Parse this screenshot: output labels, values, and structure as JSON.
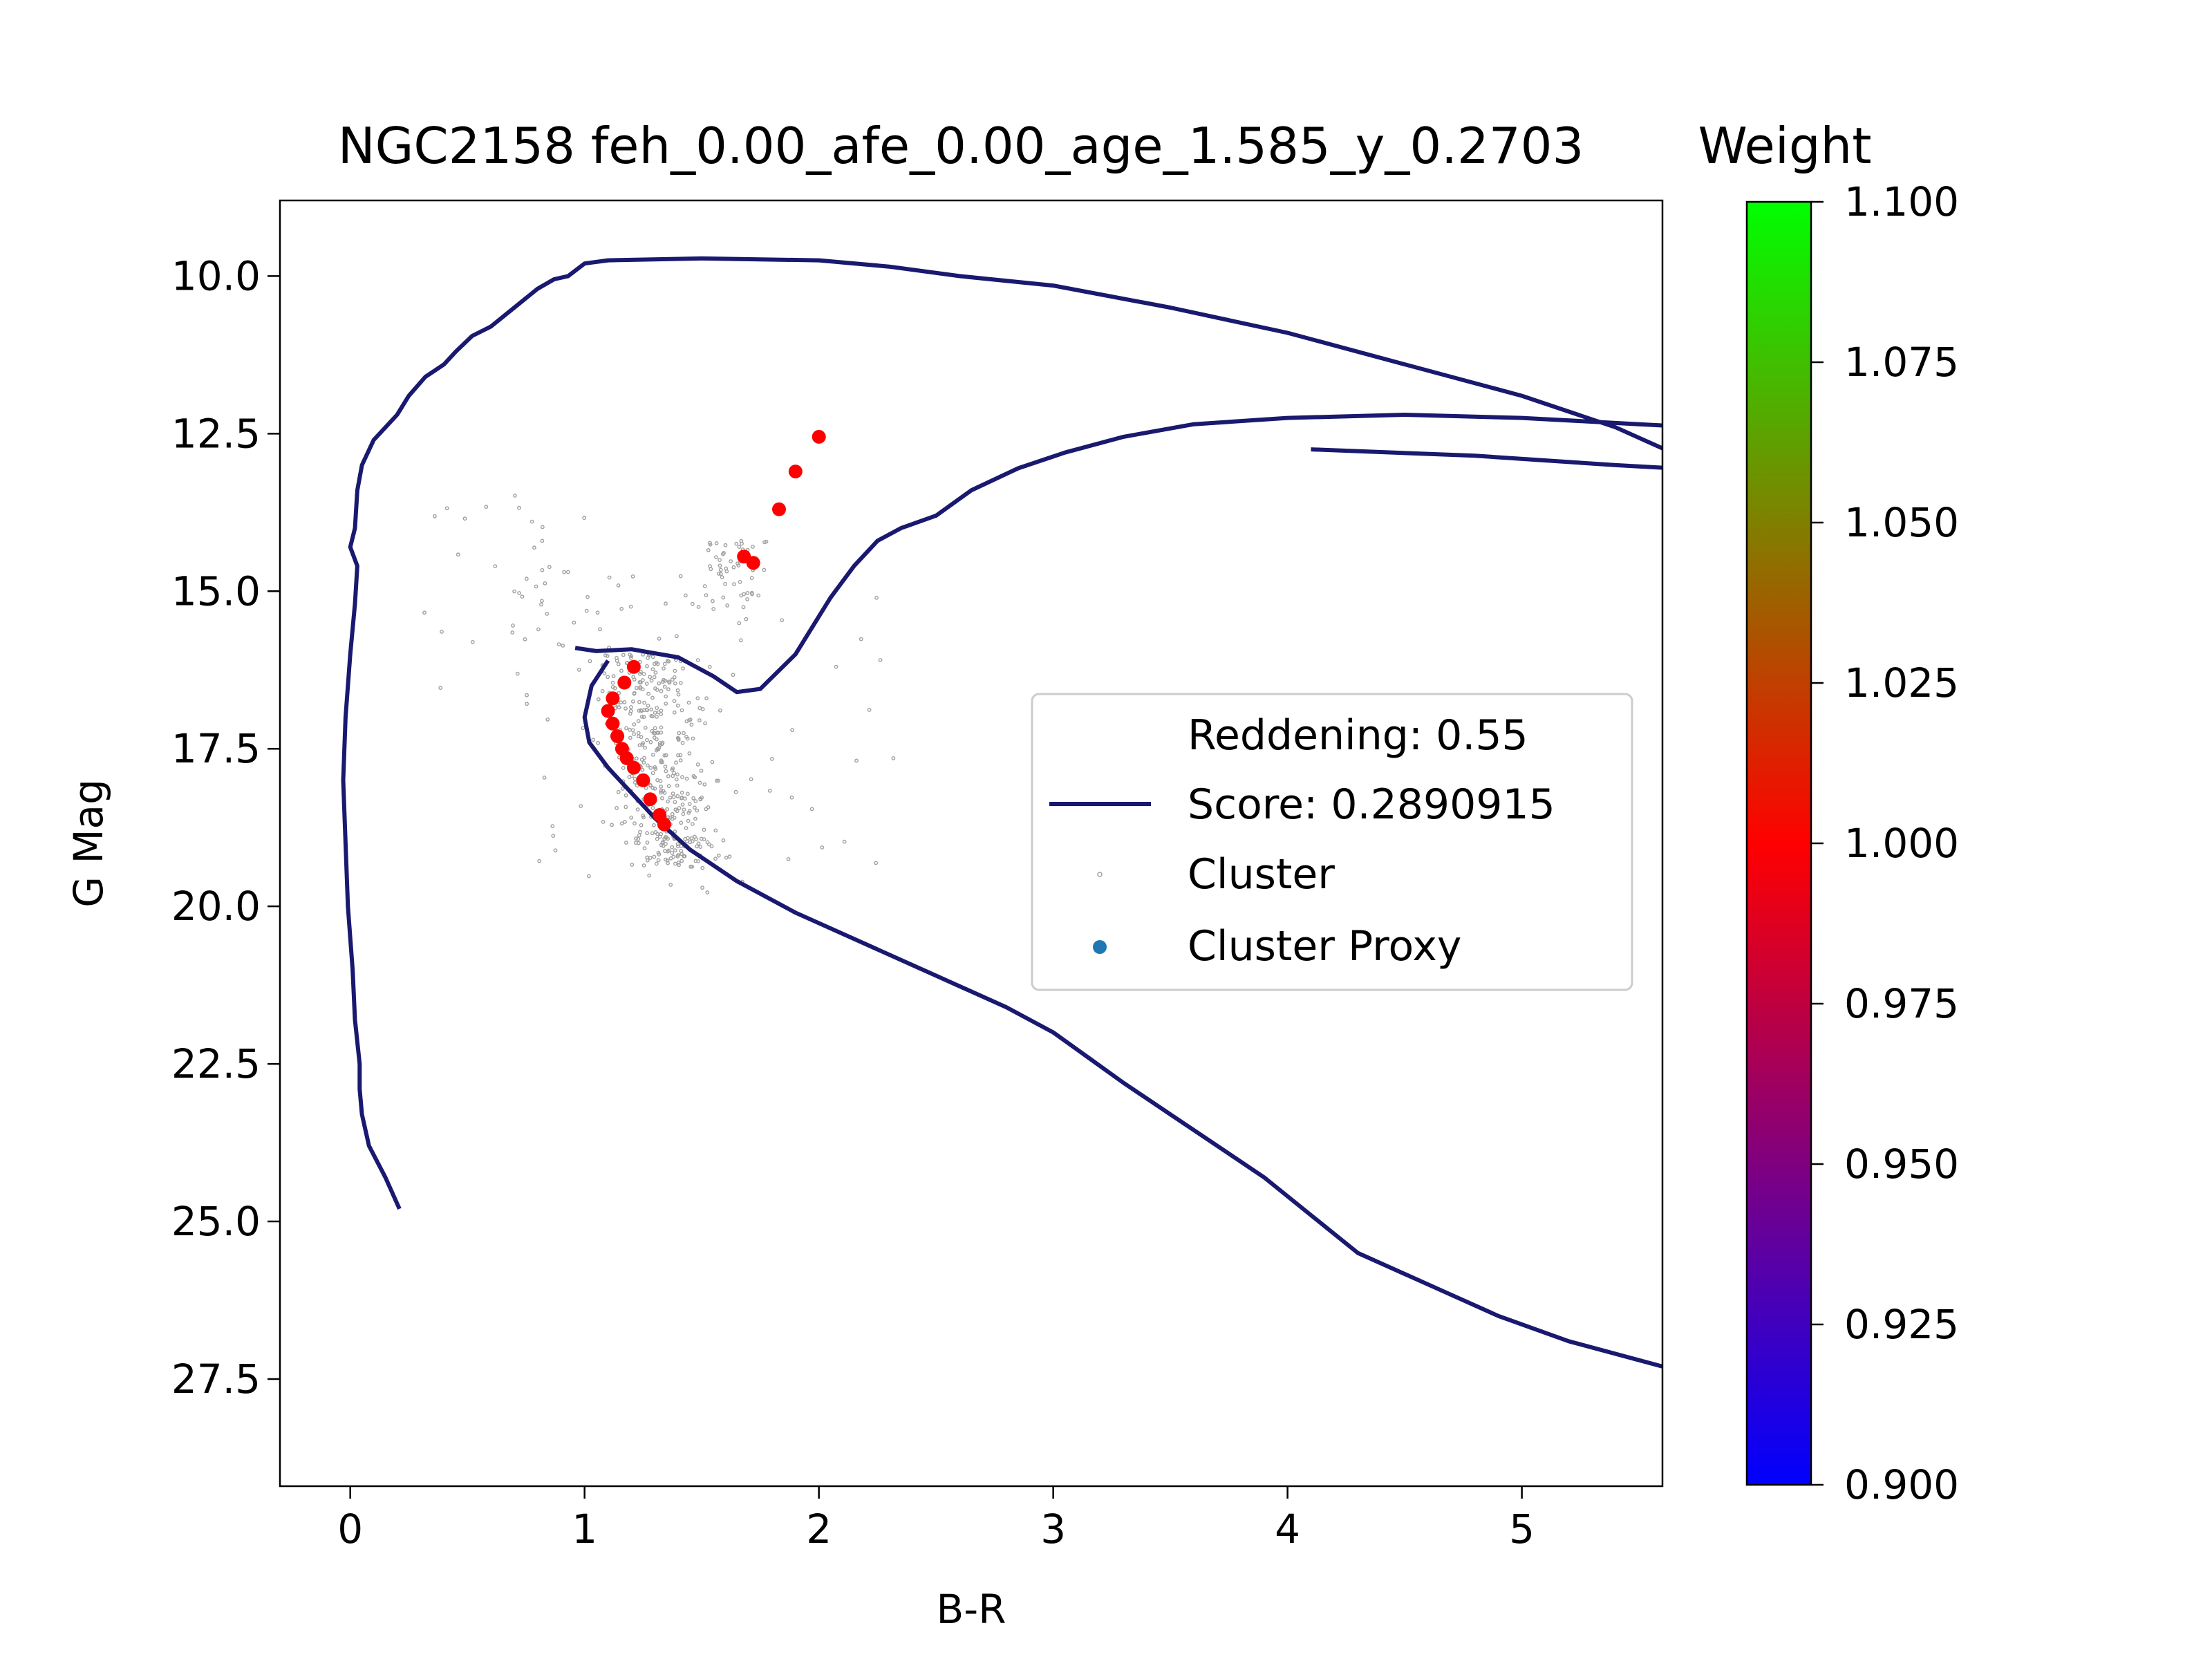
{
  "chart_data": {
    "type": "scatter",
    "title": "NGC2158 feh_0.00_afe_0.00_age_1.585_y_0.2703",
    "xlabel": "B-R",
    "ylabel": "G Mag",
    "xlim": [
      -0.3,
      5.6
    ],
    "ylim": [
      29.2,
      8.8
    ],
    "y_inverted": true,
    "grid": false,
    "x_ticks": [
      {
        "value": 0,
        "label": "0"
      },
      {
        "value": 1,
        "label": "1"
      },
      {
        "value": 2,
        "label": "2"
      },
      {
        "value": 3,
        "label": "3"
      },
      {
        "value": 4,
        "label": "4"
      },
      {
        "value": 5,
        "label": "5"
      }
    ],
    "y_ticks": [
      {
        "value": 10.0,
        "label": "10.0"
      },
      {
        "value": 12.5,
        "label": "12.5"
      },
      {
        "value": 15.0,
        "label": "15.0"
      },
      {
        "value": 17.5,
        "label": "17.5"
      },
      {
        "value": 20.0,
        "label": "20.0"
      },
      {
        "value": 22.5,
        "label": "22.5"
      },
      {
        "value": 25.0,
        "label": "25.0"
      },
      {
        "value": 27.5,
        "label": "27.5"
      }
    ],
    "legend": {
      "placement": "center-right",
      "entries": [
        {
          "label": "Reddening: 0.55",
          "marker": "none"
        },
        {
          "label": "Score: 0.2890915",
          "marker": "line",
          "color": "#191970"
        },
        {
          "label": "Cluster",
          "marker": "small-dot",
          "color": "#a0a0a0"
        },
        {
          "label": "Cluster Proxy",
          "marker": "dot",
          "color": "#1f77b4"
        }
      ]
    },
    "isochrone": {
      "name": "Score: 0.2890915",
      "color": "#191970",
      "segments": [
        [
          [
            0.21,
            24.8
          ],
          [
            0.15,
            24.3
          ],
          [
            0.08,
            23.8
          ],
          [
            0.05,
            23.3
          ],
          [
            0.04,
            22.9
          ],
          [
            0.04,
            22.5
          ],
          [
            0.02,
            21.8
          ],
          [
            0.01,
            21.0
          ],
          [
            -0.01,
            20.0
          ],
          [
            -0.02,
            19.0
          ],
          [
            -0.03,
            18.0
          ],
          [
            -0.02,
            17.0
          ],
          [
            0.0,
            16.0
          ],
          [
            0.02,
            15.2
          ],
          [
            0.03,
            14.6
          ],
          [
            0.0,
            14.3
          ],
          [
            0.02,
            14.0
          ],
          [
            0.03,
            13.4
          ],
          [
            0.05,
            13.0
          ],
          [
            0.1,
            12.6
          ],
          [
            0.2,
            12.2
          ],
          [
            0.25,
            11.9
          ],
          [
            0.32,
            11.6
          ],
          [
            0.4,
            11.4
          ],
          [
            0.45,
            11.2
          ],
          [
            0.52,
            10.95
          ],
          [
            0.6,
            10.8
          ],
          [
            0.7,
            10.5
          ],
          [
            0.8,
            10.2
          ],
          [
            0.87,
            10.05
          ],
          [
            0.93,
            10.0
          ],
          [
            1.0,
            9.8
          ],
          [
            1.1,
            9.75
          ],
          [
            1.5,
            9.72
          ],
          [
            2.0,
            9.75
          ],
          [
            2.3,
            9.85
          ],
          [
            2.6,
            10.0
          ],
          [
            3.0,
            10.15
          ],
          [
            3.5,
            10.5
          ],
          [
            4.0,
            10.9
          ],
          [
            4.5,
            11.4
          ],
          [
            5.0,
            11.9
          ],
          [
            5.4,
            12.4
          ],
          [
            5.7,
            12.9
          ],
          [
            5.9,
            13.1
          ]
        ],
        [
          [
            0.96,
            15.9
          ],
          [
            1.05,
            15.95
          ],
          [
            1.2,
            15.92
          ],
          [
            1.4,
            16.05
          ],
          [
            1.55,
            16.35
          ],
          [
            1.65,
            16.6
          ],
          [
            1.75,
            16.55
          ],
          [
            1.9,
            16.0
          ],
          [
            2.05,
            15.1
          ],
          [
            2.15,
            14.6
          ],
          [
            2.25,
            14.2
          ],
          [
            2.35,
            14.0
          ],
          [
            2.5,
            13.8
          ],
          [
            2.65,
            13.4
          ],
          [
            2.85,
            13.05
          ],
          [
            3.05,
            12.8
          ],
          [
            3.3,
            12.55
          ],
          [
            3.6,
            12.35
          ],
          [
            4.0,
            12.25
          ],
          [
            4.5,
            12.2
          ],
          [
            5.0,
            12.25
          ],
          [
            5.5,
            12.35
          ],
          [
            6.0,
            12.45
          ],
          [
            6.3,
            12.6
          ],
          [
            6.5,
            12.8
          ],
          [
            6.55,
            12.9
          ]
        ],
        [
          [
            1.1,
            16.1
          ],
          [
            1.03,
            16.5
          ],
          [
            1.0,
            17.0
          ],
          [
            1.02,
            17.4
          ],
          [
            1.1,
            17.8
          ],
          [
            1.2,
            18.2
          ],
          [
            1.3,
            18.6
          ],
          [
            1.45,
            19.1
          ],
          [
            1.65,
            19.6
          ],
          [
            1.9,
            20.1
          ],
          [
            2.2,
            20.6
          ],
          [
            2.5,
            21.1
          ],
          [
            2.8,
            21.6
          ],
          [
            3.0,
            22.0
          ],
          [
            3.15,
            22.4
          ],
          [
            3.3,
            22.8
          ],
          [
            3.5,
            23.3
          ],
          [
            3.7,
            23.8
          ],
          [
            3.9,
            24.3
          ],
          [
            4.1,
            24.9
          ],
          [
            4.3,
            25.5
          ],
          [
            4.6,
            26.0
          ],
          [
            4.9,
            26.5
          ],
          [
            5.2,
            26.9
          ],
          [
            5.6,
            27.3
          ],
          [
            6.0,
            27.7
          ],
          [
            6.4,
            28.1
          ],
          [
            6.8,
            28.5
          ]
        ],
        [
          [
            5.7,
            12.9
          ],
          [
            5.8,
            13.2
          ],
          [
            5.9,
            13.35
          ]
        ],
        [
          [
            4.1,
            12.75
          ],
          [
            4.8,
            12.85
          ],
          [
            5.4,
            13.0
          ],
          [
            5.9,
            13.1
          ]
        ]
      ]
    },
    "cluster_proxy": {
      "name": "Cluster Proxy",
      "weight": 1.0,
      "color": "#ff0000",
      "points": [
        [
          2.0,
          12.55
        ],
        [
          1.9,
          13.1
        ],
        [
          1.83,
          13.7
        ],
        [
          1.68,
          14.45
        ],
        [
          1.72,
          14.55
        ],
        [
          1.21,
          16.2
        ],
        [
          1.17,
          16.45
        ],
        [
          1.12,
          16.7
        ],
        [
          1.1,
          16.9
        ],
        [
          1.12,
          17.1
        ],
        [
          1.14,
          17.3
        ],
        [
          1.16,
          17.5
        ],
        [
          1.18,
          17.65
        ],
        [
          1.21,
          17.8
        ],
        [
          1.25,
          18.0
        ],
        [
          1.28,
          18.3
        ],
        [
          1.32,
          18.55
        ],
        [
          1.34,
          18.7
        ]
      ]
    },
    "cluster": {
      "name": "Cluster",
      "color": "#a0a0a0",
      "approx_count": 600
    },
    "colorbar": {
      "label": "Weight",
      "range": [
        0.9,
        1.1
      ],
      "colormap": "brg",
      "colors": [
        "#0000ff",
        "#ff0000",
        "#00ff00"
      ],
      "ticks": [
        "0.900",
        "0.925",
        "0.950",
        "0.975",
        "1.000",
        "1.025",
        "1.050",
        "1.075",
        "1.100"
      ]
    }
  }
}
